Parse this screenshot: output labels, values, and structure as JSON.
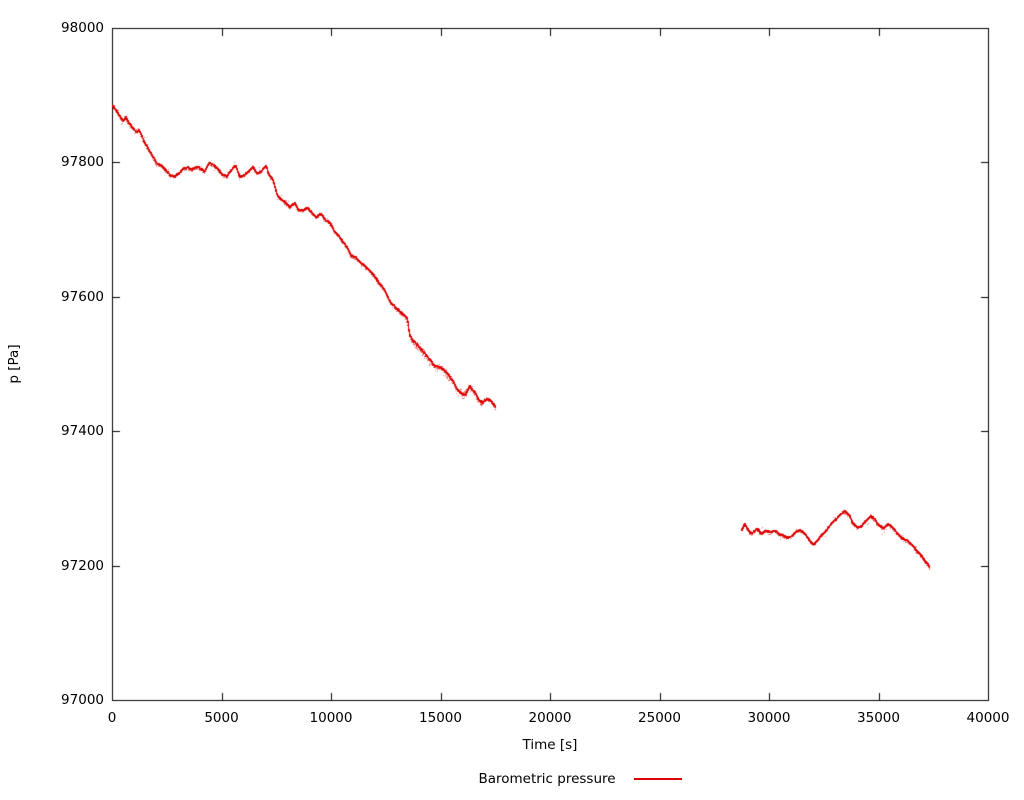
{
  "chart_data": {
    "type": "scatter",
    "title": "",
    "xlabel": "Time [s]",
    "ylabel": "p [Pa]",
    "xlim": [
      0,
      40000
    ],
    "ylim": [
      97000,
      98000
    ],
    "xticks": [
      0,
      5000,
      10000,
      15000,
      20000,
      25000,
      30000,
      35000,
      40000
    ],
    "yticks": [
      97000,
      97200,
      97400,
      97600,
      97800,
      98000
    ],
    "grid": false,
    "legend_position": "bottom-center",
    "legend_label": "Barometric pressure",
    "border_color": "#000000",
    "noise": {
      "base": 1.0,
      "regions": [
        {
          "from": 600,
          "to": 1500,
          "value": 1.4
        },
        {
          "from": 13400,
          "to": 16900,
          "value": 2.3
        }
      ]
    },
    "series": [
      {
        "name": "Barometric pressure",
        "color": "#dd0000",
        "segments": [
          {
            "t": [
              0,
              150,
              300,
              450,
              600,
              750,
              900,
              1050,
              1200,
              1350,
              1500,
              1650,
              1800,
              2000,
              2200,
              2400,
              2600,
              2800,
              3000,
              3200,
              3400,
              3600,
              3800,
              4000,
              4200,
              4400,
              4600,
              4800,
              5000,
              5200,
              5400,
              5600,
              5800,
              6000,
              6200,
              6400,
              6600,
              6800,
              7000,
              7100,
              7300,
              7500,
              7700,
              7900,
              8100,
              8300,
              8500,
              8700,
              8900,
              9100,
              9300,
              9500,
              9700,
              9900,
              10100,
              10300,
              10500,
              10700,
              10900,
              11100,
              11300,
              11500,
              11700,
              11900,
              12100,
              12300,
              12500,
              12700,
              12900,
              13100,
              13300,
              13450,
              13550,
              13700,
              13900,
              14100,
              14300,
              14500,
              14700,
              14900,
              15100,
              15300,
              15500,
              15700,
              15900,
              16100,
              16300,
              16500,
              16700,
              16900,
              17100,
              17300,
              17500
            ],
            "p": [
              97885,
              97878,
              97870,
              97862,
              97868,
              97860,
              97852,
              97845,
              97848,
              97838,
              97828,
              97820,
              97812,
              97800,
              97797,
              97790,
              97782,
              97780,
              97785,
              97792,
              97795,
              97792,
              97796,
              97793,
              97788,
              97800,
              97795,
              97788,
              97780,
              97778,
              97788,
              97795,
              97775,
              97780,
              97785,
              97792,
              97780,
              97785,
              97792,
              97780,
              97772,
              97750,
              97742,
              97738,
              97732,
              97738,
              97728,
              97726,
              97730,
              97722,
              97716,
              97720,
              97712,
              97708,
              97695,
              97688,
              97680,
              97672,
              97660,
              97658,
              97650,
              97645,
              97640,
              97632,
              97622,
              97615,
              97605,
              97592,
              97585,
              97580,
              97576,
              97570,
              97545,
              97538,
              97532,
              97524,
              97515,
              97508,
              97500,
              97498,
              97495,
              97488,
              97478,
              97465,
              97458,
              97455,
              97468,
              97462,
              97450,
              97443,
              97450,
              97443,
              97436
            ]
          },
          {
            "t": [
              28700,
              28850,
              29000,
              29150,
              29300,
              29450,
              29600,
              29800,
              30000,
              30200,
              30400,
              30600,
              30800,
              31000,
              31200,
              31400,
              31600,
              31800,
              32000,
              32200,
              32400,
              32600,
              32800,
              33000,
              33200,
              33400,
              33600,
              33800,
              34000,
              34200,
              34400,
              34600,
              34800,
              35000,
              35200,
              35400,
              35600,
              35800,
              36000,
              36200,
              36400,
              36600,
              36800,
              37000,
              37150,
              37300
            ],
            "p": [
              97252,
              97264,
              97255,
              97248,
              97252,
              97255,
              97250,
              97252,
              97249,
              97251,
              97245,
              97242,
              97238,
              97242,
              97250,
              97253,
              97246,
              97238,
              97232,
              97240,
              97248,
              97255,
              97262,
              97268,
              97275,
              97280,
              97276,
              97262,
              97255,
              97258,
              97265,
              97273,
              97268,
              97258,
              97254,
              97260,
              97256,
              97250,
              97244,
              97240,
              97236,
              97228,
              97220,
              97212,
              97205,
              97200
            ]
          }
        ]
      }
    ]
  }
}
